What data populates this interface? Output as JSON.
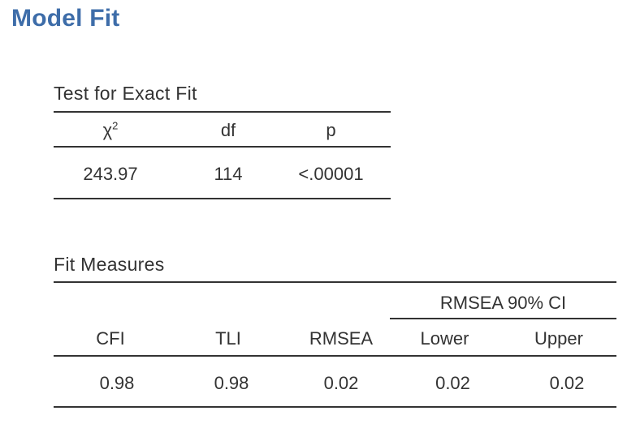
{
  "page_title": "Model Fit",
  "exact_fit": {
    "title": "Test for Exact Fit",
    "headers": {
      "chisq_base": "χ",
      "chisq_sup": "2",
      "df": "df",
      "p": "p"
    },
    "row": {
      "chisq": "243.97",
      "df": "114",
      "p": "<.00001"
    }
  },
  "fit_measures": {
    "title": "Fit Measures",
    "group_header": "RMSEA 90% CI",
    "headers": {
      "cfi": "CFI",
      "tli": "TLI",
      "rmsea": "RMSEA",
      "lower": "Lower",
      "upper": "Upper"
    },
    "row": {
      "cfi": "0.98",
      "tli": "0.98",
      "rmsea": "0.02",
      "lower": "0.02",
      "upper": "0.02"
    }
  }
}
